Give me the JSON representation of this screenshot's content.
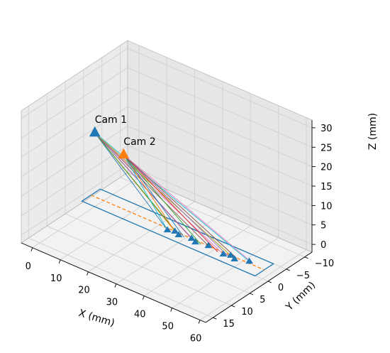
{
  "chart_data": {
    "type": "scatter",
    "subtype": "3d-line",
    "xlabel": "X (mm)",
    "ylabel": "Y (mm)",
    "zlabel": "Z (mm)",
    "xlim": [
      -4,
      62
    ],
    "ylim": [
      -12,
      17
    ],
    "zlim": [
      -2,
      32
    ],
    "x_ticks": [
      0,
      10,
      20,
      30,
      40,
      50,
      60
    ],
    "y_ticks": [
      -10,
      -5,
      0,
      5,
      10,
      15
    ],
    "z_ticks": [
      0,
      5,
      10,
      15,
      20,
      25,
      30
    ],
    "grid": true,
    "cameras": [
      {
        "label": "Cam 1",
        "x": 0,
        "y": 0,
        "z": 17,
        "color": "#1f77b4"
      },
      {
        "label": "Cam 2",
        "x": 30,
        "y": 15,
        "z": 30,
        "color": "#ff7f0e"
      }
    ],
    "plane": {
      "corners": [
        [
          -2,
          2,
          0
        ],
        [
          60,
          2,
          0
        ],
        [
          60,
          -3,
          0
        ],
        [
          -2,
          -3,
          0
        ]
      ],
      "color": "#1f77b4",
      "dashed_line": {
        "from": [
          -2,
          -0.5,
          0
        ],
        "to": [
          60,
          -0.5,
          0
        ],
        "color": "#ff7f0e"
      }
    },
    "target_points": [
      {
        "x": 26,
        "y": 0,
        "z": 0,
        "color": "#1f77b4"
      },
      {
        "x": 28,
        "y": -0.5,
        "z": 0,
        "color": "#ff7f0e"
      },
      {
        "x": 30,
        "y": 0,
        "z": 0,
        "color": "#2ca02c"
      },
      {
        "x": 34,
        "y": -0.5,
        "z": 0,
        "color": "#d62728"
      },
      {
        "x": 36,
        "y": 0,
        "z": 0,
        "color": "#9467bd"
      },
      {
        "x": 40,
        "y": -0.5,
        "z": 0,
        "color": "#8c564b"
      },
      {
        "x": 46,
        "y": 0,
        "z": 0,
        "color": "#e377c2"
      },
      {
        "x": 48,
        "y": -0.5,
        "z": 0,
        "color": "#7f7f7f"
      },
      {
        "x": 50,
        "y": 0,
        "z": 0,
        "color": "#bcbd22"
      },
      {
        "x": 54,
        "y": -1,
        "z": 0,
        "color": "#17becf"
      }
    ],
    "rays_cam1_colors": [
      "#1f77b4",
      "#ff7f0e",
      "#2ca02c",
      "#d62728",
      "#9467bd",
      "#8c564b",
      "#e377c2",
      "#7f7f7f",
      "#bcbd22",
      "#17becf"
    ],
    "rays_cam2_targets": [
      {
        "x": 26,
        "y": 0,
        "color": "#17becf"
      },
      {
        "x": 28,
        "y": -0.5,
        "color": "#ff7f0e"
      },
      {
        "x": 32,
        "y": 0,
        "color": "#1f77b4"
      },
      {
        "x": 38,
        "y": 0,
        "color": "#2ca02c"
      },
      {
        "x": 44,
        "y": 0,
        "color": "#d62728"
      },
      {
        "x": 48,
        "y": 0,
        "color": "#9467bd"
      },
      {
        "x": 50,
        "y": -0.5,
        "color": "#8c564b"
      },
      {
        "x": 55,
        "y": -1,
        "color": "#e377c2"
      }
    ]
  }
}
